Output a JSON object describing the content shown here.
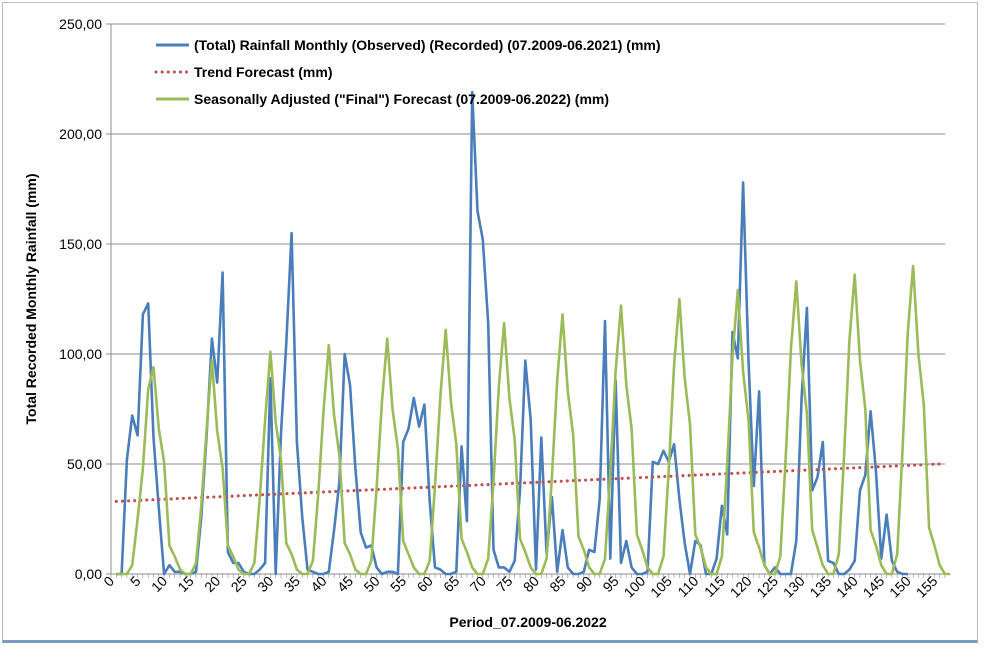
{
  "chart_data": {
    "type": "line",
    "xlabel": "Period_07.2009-06.2022",
    "ylabel": "Total Recorded Monthly Rainfall (mm)",
    "xlim": [
      0,
      157
    ],
    "ylim": [
      0,
      250
    ],
    "grid": "horizontal",
    "legend_position": "top-left",
    "y_tick_labels": [
      "0,00",
      "50,00",
      "100,00",
      "150,00",
      "200,00",
      "250,00"
    ],
    "x_tick_labels": [
      "0",
      "5",
      "10",
      "15",
      "20",
      "25",
      "30",
      "35",
      "40",
      "45",
      "50",
      "55",
      "60",
      "65",
      "70",
      "75",
      "80",
      "85",
      "90",
      "95",
      "100",
      "105",
      "110",
      "115",
      "120",
      "125",
      "130",
      "135",
      "140",
      "145",
      "150",
      "155"
    ],
    "series": [
      {
        "name": "(Total) Rainfall Monthly (Observed) (Recorded) (07.2009-06.2021) (mm)",
        "color": "#4a7ebb",
        "style": "solid",
        "x_start": 1,
        "values": [
          0,
          0,
          52,
          72,
          63,
          118,
          123,
          62,
          30,
          0,
          4,
          1,
          1,
          0,
          0,
          1,
          26,
          63,
          107,
          87,
          137,
          10,
          5,
          5,
          1,
          0,
          0,
          2,
          5,
          89,
          0,
          64,
          105,
          155,
          60,
          26,
          2,
          1,
          0,
          0,
          1,
          20,
          42,
          100,
          86,
          48,
          19,
          12,
          13,
          3,
          0,
          1,
          1,
          0,
          60,
          66,
          80,
          67,
          77,
          33,
          3,
          2,
          0,
          0,
          1,
          58,
          24,
          219,
          165,
          152,
          114,
          11,
          3,
          3,
          1,
          6,
          38,
          97,
          70,
          2,
          62,
          9,
          35,
          1,
          20,
          3,
          0,
          0,
          1,
          11,
          10,
          34,
          115,
          7,
          88,
          5,
          15,
          3,
          0,
          0,
          1,
          51,
          50,
          56,
          51,
          59,
          34,
          14,
          0,
          15,
          13,
          0,
          0,
          7,
          31,
          18,
          110,
          98,
          178,
          97,
          40,
          83,
          4,
          0,
          3,
          0,
          0,
          0,
          15,
          80,
          121,
          38,
          44,
          60,
          6,
          5,
          0,
          0,
          2,
          6,
          38,
          45,
          74,
          47,
          7,
          27,
          6,
          1,
          0,
          0
        ]
      },
      {
        "name": "Trend Forecast (mm)",
        "color": "#c0504d",
        "style": "dotted",
        "x": [
          1,
          156
        ],
        "values": [
          33,
          50
        ]
      },
      {
        "name": "Seasonally Adjusted (\"Final\") Forecast (07.2009-06.2022) (mm)",
        "color": "#9bbb59",
        "style": "solid",
        "x_start": 1,
        "values": [
          0,
          0,
          0,
          4,
          25,
          48,
          84,
          94,
          66,
          51,
          13,
          8,
          2,
          0,
          0,
          5,
          31,
          66,
          97,
          65,
          48,
          13,
          8,
          2,
          0,
          0,
          5,
          34,
          70,
          101,
          69,
          52,
          14,
          9,
          2,
          0,
          0,
          6,
          36,
          74,
          104,
          72,
          54,
          14,
          9,
          2,
          0,
          0,
          6,
          39,
          78,
          107,
          75,
          57,
          15,
          9,
          3,
          0,
          0,
          6,
          40,
          81,
          111,
          78,
          59,
          16,
          10,
          3,
          0,
          0,
          7,
          42,
          85,
          114,
          80,
          61,
          16,
          10,
          3,
          0,
          0,
          7,
          44,
          88,
          118,
          83,
          63,
          17,
          11,
          3,
          0,
          0,
          7,
          46,
          92,
          122,
          86,
          66,
          18,
          11,
          3,
          0,
          0,
          8,
          48,
          95,
          125,
          89,
          68,
          18,
          12,
          3,
          0,
          0,
          8,
          50,
          99,
          129,
          92,
          70,
          19,
          12,
          4,
          0,
          0,
          8,
          52,
          102,
          133,
          95,
          73,
          20,
          12,
          4,
          0,
          0,
          9,
          54,
          106,
          136,
          97,
          75,
          20,
          13,
          4,
          0,
          0,
          9,
          56,
          110,
          140,
          100,
          77,
          21,
          13,
          4,
          0,
          0
        ],
        "values_alt_note": ""
      }
    ]
  }
}
